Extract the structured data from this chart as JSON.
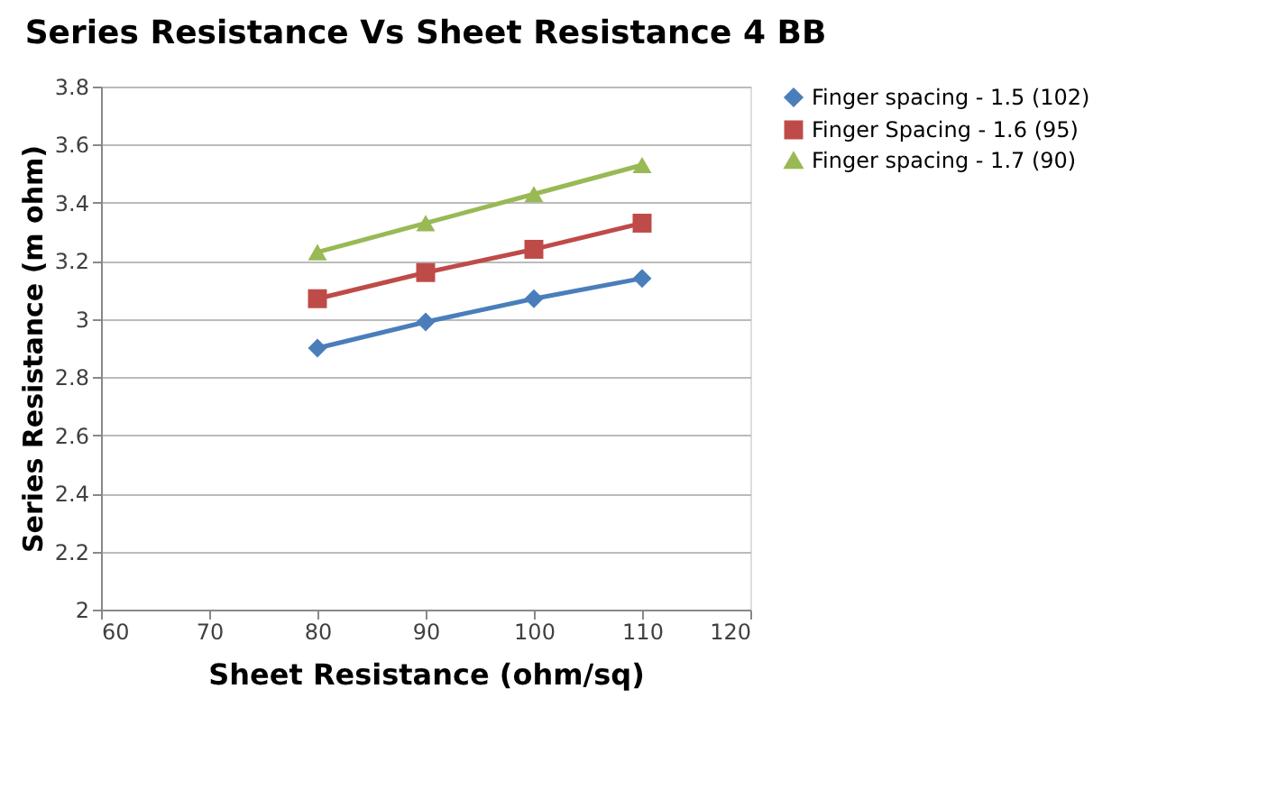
{
  "chart_data": {
    "type": "line",
    "title": "Series Resistance Vs Sheet Resistance 4 BB",
    "xlabel": "Sheet Resistance (ohm/sq)",
    "ylabel": "Series Resistance (m ohm)",
    "x": [
      80,
      90,
      100,
      110
    ],
    "series": [
      {
        "name": "Finger spacing - 1.5 (102)",
        "color": "#4a7ebb",
        "marker": "diamond",
        "values": [
          2.9,
          2.99,
          3.07,
          3.14
        ]
      },
      {
        "name": "Finger Spacing - 1.6 (95)",
        "color": "#be4b48",
        "marker": "square",
        "values": [
          3.07,
          3.16,
          3.24,
          3.33
        ]
      },
      {
        "name": "Finger spacing - 1.7 (90)",
        "color": "#98b954",
        "marker": "triangle",
        "values": [
          3.23,
          3.33,
          3.43,
          3.53
        ]
      }
    ],
    "xlim": [
      60,
      120
    ],
    "xticks": [
      60,
      70,
      80,
      90,
      100,
      110,
      120
    ],
    "ylim": [
      2,
      3.8
    ],
    "yticks": [
      2,
      2.2,
      2.4,
      2.6,
      2.8,
      3,
      3.2,
      3.4,
      3.6,
      3.8
    ],
    "grid": "y",
    "legend": "right",
    "line_style": "solid"
  }
}
